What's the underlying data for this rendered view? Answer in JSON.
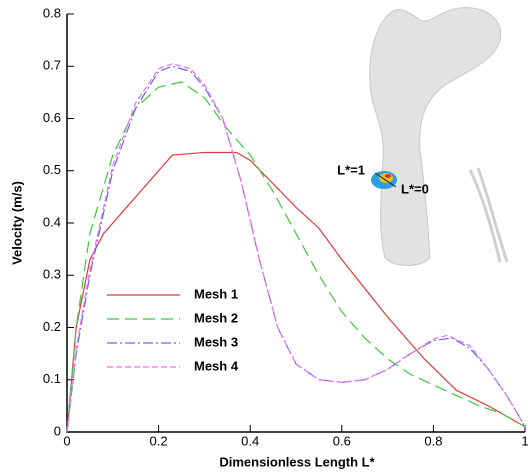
{
  "chart_data": {
    "type": "line",
    "xlabel": "Dimensionless Length L*",
    "ylabel": "Velocity (m/s)",
    "annotations": [
      "L*=1",
      "L*=0"
    ],
    "xlim": [
      0,
      1
    ],
    "xticks": [
      0,
      0.2,
      0.4,
      0.6,
      0.8,
      1
    ],
    "ylim": [
      0,
      0.8
    ],
    "yticks": [
      0,
      0.1,
      0.2,
      0.3,
      0.4,
      0.5,
      0.6,
      0.7,
      0.8
    ],
    "series": [
      {
        "name": "Mesh 1",
        "color": "#e03a3a",
        "dash": "",
        "x": [
          0,
          0.02,
          0.05,
          0.08,
          0.15,
          0.23,
          0.3,
          0.37,
          0.4,
          0.5,
          0.55,
          0.6,
          0.7,
          0.78,
          0.85,
          0.92,
          1
        ],
        "values": [
          0,
          0.2,
          0.33,
          0.38,
          0.45,
          0.53,
          0.535,
          0.535,
          0.52,
          0.43,
          0.39,
          0.33,
          0.22,
          0.14,
          0.08,
          0.05,
          0.01
        ]
      },
      {
        "name": "Mesh 2",
        "color": "#3cc83c",
        "dash": "12 6",
        "x": [
          0,
          0.02,
          0.05,
          0.1,
          0.15,
          0.2,
          0.25,
          0.3,
          0.35,
          0.4,
          0.45,
          0.5,
          0.55,
          0.6,
          0.65,
          0.7,
          0.75,
          0.8,
          0.85,
          0.9,
          0.95,
          1
        ],
        "values": [
          0,
          0.2,
          0.38,
          0.53,
          0.62,
          0.66,
          0.67,
          0.64,
          0.58,
          0.53,
          0.46,
          0.38,
          0.3,
          0.23,
          0.18,
          0.14,
          0.11,
          0.09,
          0.07,
          0.05,
          0.035,
          0.01
        ]
      },
      {
        "name": "Mesh 3",
        "color": "#6a6ae8",
        "dash": "10 3 2 3",
        "x": [
          0,
          0.02,
          0.05,
          0.1,
          0.15,
          0.2,
          0.23,
          0.27,
          0.3,
          0.34,
          0.38,
          0.42,
          0.46,
          0.5,
          0.55,
          0.6,
          0.65,
          0.7,
          0.75,
          0.8,
          0.84,
          0.88,
          0.92,
          0.96,
          1
        ],
        "values": [
          0,
          0.15,
          0.3,
          0.5,
          0.62,
          0.69,
          0.7,
          0.69,
          0.66,
          0.6,
          0.48,
          0.33,
          0.2,
          0.13,
          0.1,
          0.095,
          0.1,
          0.12,
          0.15,
          0.175,
          0.18,
          0.16,
          0.12,
          0.07,
          0.01
        ]
      },
      {
        "name": "Mesh 4",
        "color": "#ee70ee",
        "dash": "6 3",
        "x": [
          0,
          0.02,
          0.05,
          0.1,
          0.15,
          0.2,
          0.23,
          0.27,
          0.3,
          0.34,
          0.38,
          0.42,
          0.46,
          0.5,
          0.55,
          0.6,
          0.65,
          0.7,
          0.75,
          0.8,
          0.83,
          0.88,
          0.92,
          0.96,
          1
        ],
        "values": [
          0,
          0.16,
          0.31,
          0.51,
          0.63,
          0.695,
          0.705,
          0.695,
          0.665,
          0.6,
          0.48,
          0.33,
          0.2,
          0.13,
          0.1,
          0.095,
          0.1,
          0.12,
          0.15,
          0.178,
          0.185,
          0.165,
          0.12,
          0.07,
          0.01
        ]
      }
    ]
  }
}
